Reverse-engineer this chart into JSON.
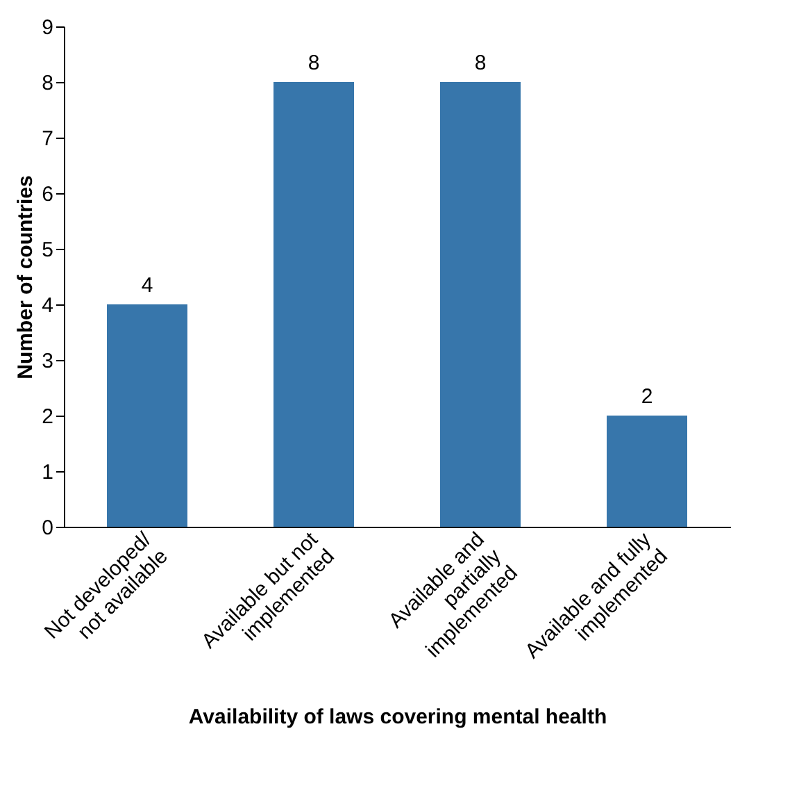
{
  "chart_data": {
    "type": "bar",
    "xlabel": "Availability of laws covering mental health",
    "ylabel": "Number of countries",
    "categories": [
      "Not developed/\nnot available",
      "Available but not\nimplemented",
      "Available and\npartially\nimplemented",
      "Available and fully\nimplemented"
    ],
    "values": [
      4,
      8,
      8,
      2
    ],
    "color": "#3776ab",
    "ylim": [
      0,
      9
    ],
    "yticks": [
      0,
      1,
      2,
      3,
      4,
      5,
      6,
      7,
      8,
      9
    ],
    "data_labels": true,
    "grid": false
  }
}
